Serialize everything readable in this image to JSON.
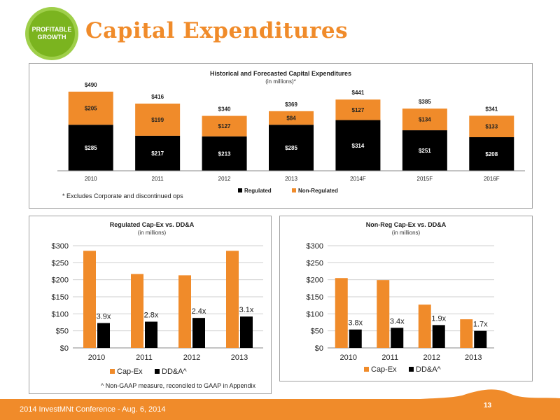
{
  "header": {
    "logo_line1": "PROFITABLE",
    "logo_line2": "GROWTH",
    "title": "Capital Expenditures"
  },
  "colors": {
    "orange": "#f08b2a",
    "black": "#000000",
    "logo_green": "#7bb41f"
  },
  "chart_data": [
    {
      "type": "bar",
      "stacked": true,
      "title": "Historical and Forecasted Capital Expenditures",
      "subtitle": "(in millions)*",
      "categories": [
        "2010",
        "2011",
        "2012",
        "2013",
        "2014F",
        "2015F",
        "2016F"
      ],
      "series": [
        {
          "name": "Regulated",
          "values": [
            285,
            217,
            213,
            285,
            314,
            251,
            208
          ],
          "labels": [
            "$285",
            "$217",
            "$213",
            "$285",
            "$314",
            "$251",
            "$208"
          ],
          "color": "#000000"
        },
        {
          "name": "Non-Regulated",
          "values": [
            205,
            199,
            127,
            84,
            127,
            134,
            133
          ],
          "labels": [
            "$205",
            "$199",
            "$127",
            "$84",
            "$127",
            "$134",
            "$133"
          ],
          "color": "#f08b2a"
        }
      ],
      "totals": [
        "$490",
        "$416",
        "$340",
        "$369",
        "$441",
        "$385",
        "$341"
      ],
      "ylim": [
        0,
        520
      ],
      "legend": "bottom",
      "note": "* Excludes Corporate and discontinued ops"
    },
    {
      "type": "bar",
      "title": "Regulated Cap-Ex vs. DD&A",
      "subtitle": "(in millions)",
      "categories": [
        "2010",
        "2011",
        "2012",
        "2013"
      ],
      "series": [
        {
          "name": "Cap-Ex",
          "values": [
            285,
            217,
            213,
            285
          ],
          "color": "#f08b2a"
        },
        {
          "name": "DD&A^",
          "values": [
            73,
            77,
            88,
            92
          ],
          "color": "#000000"
        }
      ],
      "ratio_labels": [
        "3.9x",
        "2.8x",
        "2.4x",
        "3.1x"
      ],
      "yticks": [
        "$0",
        "$50",
        "$100",
        "$150",
        "$200",
        "$250",
        "$300"
      ],
      "ylim": [
        0,
        300
      ],
      "grid": true,
      "legend": "bottom"
    },
    {
      "type": "bar",
      "title": "Non-Reg Cap-Ex vs. DD&A",
      "subtitle": "(in millions)",
      "categories": [
        "2010",
        "2011",
        "2012",
        "2013"
      ],
      "series": [
        {
          "name": "Cap-Ex",
          "values": [
            205,
            199,
            127,
            84
          ],
          "color": "#f08b2a"
        },
        {
          "name": "DD&A^",
          "values": [
            54,
            59,
            67,
            50
          ],
          "color": "#000000"
        }
      ],
      "ratio_labels": [
        "3.8x",
        "3.4x",
        "1.9x",
        "1.7x"
      ],
      "yticks": [
        "$0",
        "$50",
        "$100",
        "$150",
        "$200",
        "$250",
        "$300"
      ],
      "ylim": [
        0,
        300
      ],
      "grid": true,
      "legend": "bottom"
    }
  ],
  "footnote": "^ Non-GAAP measure, reconciled to GAAP in Appendix",
  "footer": {
    "text": "2014 InvestMNt Conference - Aug. 6, 2014",
    "page": "13"
  }
}
